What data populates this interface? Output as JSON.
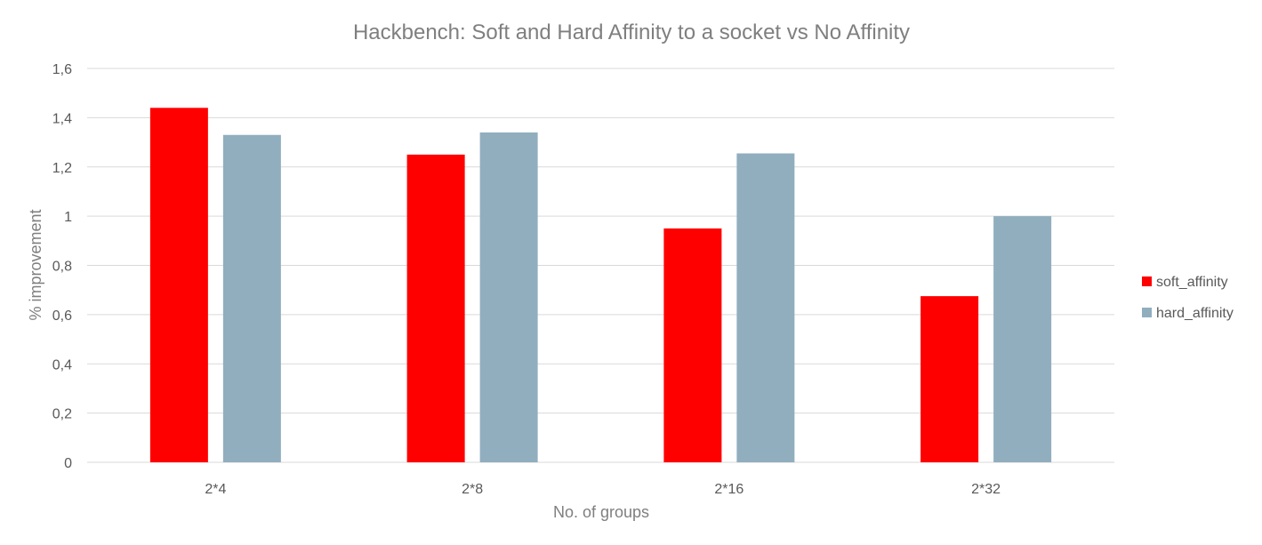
{
  "chart_data": {
    "type": "bar",
    "title": "Hackbench: Soft and Hard Affinity to a socket vs No Affinity",
    "xlabel": "No. of groups",
    "ylabel": "% improvement",
    "categories": [
      "2*4",
      "2*8",
      "2*16",
      "2*32"
    ],
    "series": [
      {
        "name": "soft_affinity",
        "color": "#ff0000",
        "values": [
          1.44,
          1.25,
          0.95,
          0.675
        ]
      },
      {
        "name": "hard_affinity",
        "color": "#91aebf",
        "values": [
          1.33,
          1.34,
          1.255,
          1.0
        ]
      }
    ],
    "ylim": [
      0,
      1.6
    ],
    "yticks": [
      "0",
      "0,2",
      "0,4",
      "0,6",
      "0,8",
      "1",
      "1,2",
      "1,4",
      "1,6"
    ],
    "grid": true,
    "legend_position": "right"
  }
}
